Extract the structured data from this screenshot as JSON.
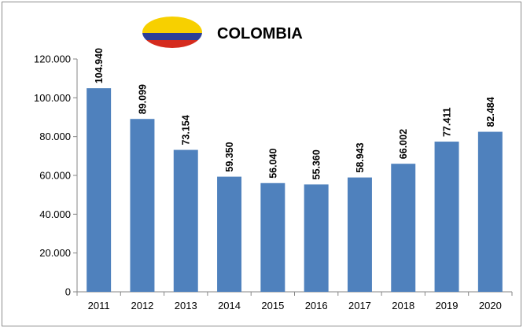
{
  "chart_data": {
    "type": "bar",
    "title": "COLOMBIA",
    "categories": [
      "2011",
      "2012",
      "2013",
      "2014",
      "2015",
      "2016",
      "2017",
      "2018",
      "2019",
      "2020"
    ],
    "values": [
      104940,
      89099,
      73154,
      59350,
      56040,
      55360,
      58943,
      66002,
      77411,
      82484
    ],
    "data_labels": [
      "104.940",
      "89.099",
      "73.154",
      "59.350",
      "56.040",
      "55.360",
      "58.943",
      "66.002",
      "77.411",
      "82.484"
    ],
    "yticks": [
      0,
      20000,
      40000,
      60000,
      80000,
      100000,
      120000
    ],
    "ytick_labels": [
      "0",
      "20.000",
      "40.000",
      "60.000",
      "80.000",
      "100.000",
      "120.000"
    ],
    "ylim": [
      0,
      120000
    ],
    "grid": false,
    "legend": "none",
    "colors": {
      "bar": "#4f81bd",
      "flag_yellow": "#f7d000",
      "flag_blue": "#2b3f97",
      "flag_red": "#d52b1e"
    },
    "icon": "colombia-flag-icon"
  }
}
